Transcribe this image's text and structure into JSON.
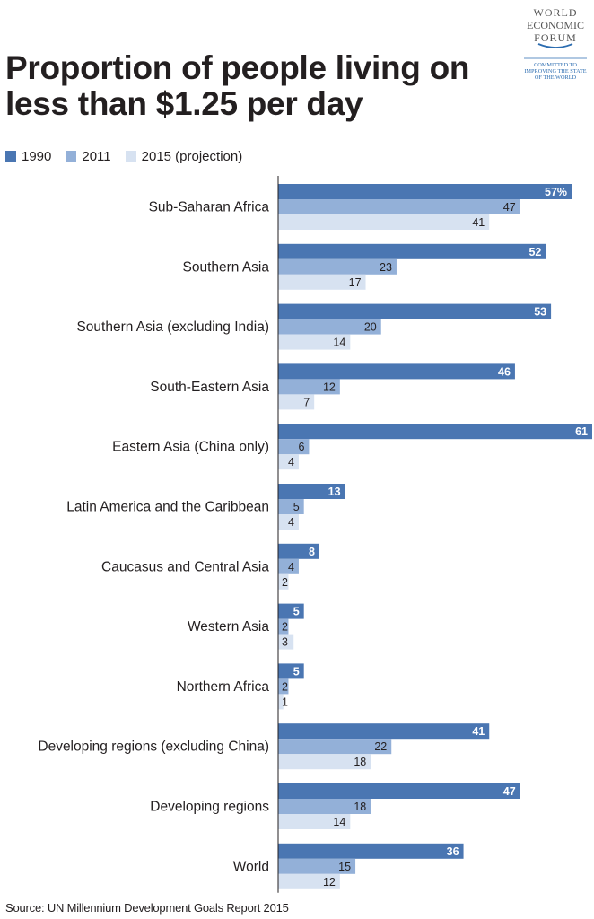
{
  "header": {
    "title_line1": "Proportion of people living on",
    "title_line2": "less than $1.25 per day",
    "logo_line1": "WORLD",
    "logo_line2": "ECONOMIC",
    "logo_line3": "FORUM",
    "tagline_line1": "COMMITTED TO",
    "tagline_line2": "IMPROVING THE STATE",
    "tagline_line3": "OF THE WORLD"
  },
  "footer": {
    "source": "Source: UN Millennium Development Goals Report 2015"
  },
  "colors": {
    "series_1990": "#4a76b2",
    "series_2011": "#93b0d8",
    "series_2015": "#d7e2f1",
    "axis": "#231f20",
    "brand": "#2b6cb0"
  },
  "chart_data": {
    "type": "bar",
    "orientation": "horizontal",
    "title": "Proportion of people living on less than $1.25 per day",
    "xlabel": "",
    "ylabel": "",
    "xlim": [
      0,
      61
    ],
    "value_suffix_first": "%",
    "legend_position": "top-left",
    "categories": [
      "Sub-Saharan Africa",
      "Southern Asia",
      "Southern Asia (excluding India)",
      "South-Eastern Asia",
      "Eastern Asia (China only)",
      "Latin America and the Caribbean",
      "Caucasus and Central Asia",
      "Western Asia",
      "Northern Africa",
      "Developing regions (excluding China)",
      "Developing regions",
      "World"
    ],
    "series": [
      {
        "name": "1990",
        "values": [
          57,
          52,
          53,
          46,
          61,
          13,
          8,
          5,
          5,
          41,
          47,
          36
        ]
      },
      {
        "name": "2011",
        "values": [
          47,
          23,
          20,
          12,
          6,
          5,
          4,
          2,
          2,
          22,
          18,
          15
        ]
      },
      {
        "name": "2015 (projection)",
        "values": [
          41,
          17,
          14,
          7,
          4,
          4,
          2,
          3,
          1,
          18,
          14,
          12
        ]
      }
    ]
  }
}
